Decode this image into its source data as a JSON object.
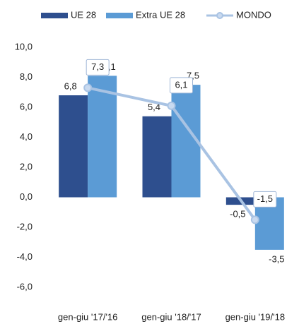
{
  "chart_data": {
    "type": "bar",
    "categories": [
      "gen-giu '17/'16",
      "gen-giu '18/'17",
      "gen-giu '19/'18"
    ],
    "series": [
      {
        "name": "UE 28",
        "color": "#2e4f8e",
        "values": [
          6.8,
          5.4,
          -0.5
        ],
        "value_labels": [
          "6,8",
          "5,4",
          "-0,5"
        ]
      },
      {
        "name": "Extra UE 28",
        "color": "#5b9bd5",
        "values": [
          8.1,
          7.5,
          -3.5
        ],
        "value_labels": [
          "8,1",
          "7,5",
          "-3,5"
        ]
      },
      {
        "name": "MONDO",
        "type": "line",
        "color": "#a9c3e3",
        "values": [
          7.3,
          6.1,
          -1.5
        ],
        "value_labels": [
          "7,3",
          "6,1",
          "-1,5"
        ]
      }
    ],
    "ylim": [
      -6,
      10
    ],
    "yticks": [
      {
        "value": -6,
        "label": "-6,0"
      },
      {
        "value": -4,
        "label": "-4,0"
      },
      {
        "value": -2,
        "label": "-2,0"
      },
      {
        "value": 0,
        "label": "0,0"
      },
      {
        "value": 2,
        "label": "2,0"
      },
      {
        "value": 4,
        "label": "4,0"
      },
      {
        "value": 6,
        "label": "6,0"
      },
      {
        "value": 8,
        "label": "8,0"
      },
      {
        "value": 10,
        "label": "10,0"
      }
    ],
    "grid": false,
    "legend": "top"
  }
}
